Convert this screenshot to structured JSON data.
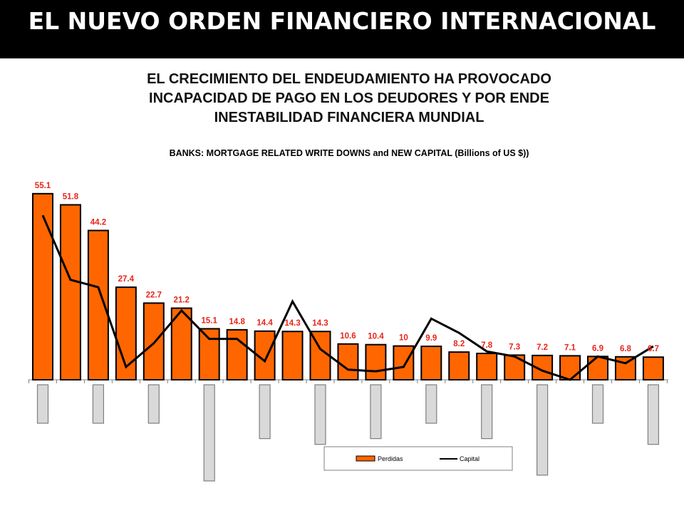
{
  "header": {
    "title": "EL NUEVO ORDEN FINANCIERO INTERNACIONAL"
  },
  "subtitle": {
    "line1": "EL CRECIMIENTO DEL ENDEUDAMIENTO HA PROVOCADO",
    "line2": "INCAPACIDAD DE PAGO EN LOS DEUDORES Y POR ENDE",
    "line3": "INESTABILIDAD FINANCIERA MUNDIAL"
  },
  "chart_data": {
    "type": "bar",
    "title": "BANKS: MORTGAGE RELATED WRITE DOWNS  and NEW CAPITAL (Billions of US $))",
    "xlabel": "",
    "ylabel": "",
    "ylim": [
      0,
      60
    ],
    "grid": false,
    "legend_position": "bottom-center",
    "colors": {
      "bar_fill": "#ff6600",
      "bar_stroke": "#000000",
      "label": "#e8251b",
      "line": "#000000",
      "lower_bar_fill": "#d9d9d9",
      "lower_bar_stroke": "#7f7f7f"
    },
    "series": [
      {
        "name": "Perdidas",
        "kind": "bar",
        "values": [
          55.1,
          51.8,
          44.2,
          27.4,
          22.7,
          21.2,
          15.1,
          14.8,
          14.4,
          14.3,
          14.3,
          10.6,
          10.4,
          10,
          9.9,
          8.2,
          7.8,
          7.3,
          7.2,
          7.1,
          6.9,
          6.8,
          6.7
        ],
        "labels": [
          "55.1",
          "51.8",
          "44.2",
          "27.4",
          "22.7",
          "21.2",
          "15.1",
          "14.8",
          "14.4",
          "14.3",
          "14.3",
          "10.6",
          "10.4",
          "10",
          "9.9",
          "8.2",
          "7.8",
          "7.3",
          "7.2",
          "7.1",
          "6.9",
          "6.8",
          "6.7"
        ]
      },
      {
        "name": "Capital",
        "kind": "line",
        "values": [
          48.7,
          29.6,
          27.4,
          3.8,
          10.8,
          20.5,
          12.1,
          12.1,
          5.5,
          23.2,
          9.1,
          3.0,
          2.5,
          3.8,
          18.1,
          13.9,
          8.4,
          6.9,
          2.7,
          0.0,
          6.9,
          4.9,
          9.9
        ]
      }
    ],
    "lower_bars": [
      {
        "index": 0,
        "depth": 1.0
      },
      {
        "index": 2,
        "depth": 1.0
      },
      {
        "index": 4,
        "depth": 1.0
      },
      {
        "index": 6,
        "depth": 2.5
      },
      {
        "index": 8,
        "depth": 1.4
      },
      {
        "index": 10,
        "depth": 1.55
      },
      {
        "index": 12,
        "depth": 1.4
      },
      {
        "index": 14,
        "depth": 1.0
      },
      {
        "index": 16,
        "depth": 1.4
      },
      {
        "index": 18,
        "depth": 2.35
      },
      {
        "index": 20,
        "depth": 1.0
      },
      {
        "index": 22,
        "depth": 1.55
      }
    ]
  }
}
